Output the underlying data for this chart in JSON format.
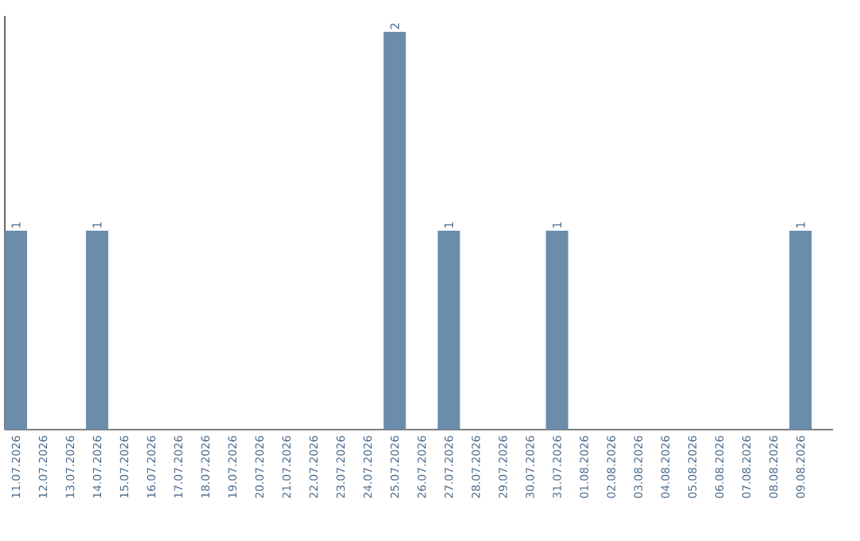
{
  "chart_data": {
    "type": "bar",
    "categories": [
      "11.07.2026",
      "12.07.2026",
      "13.07.2026",
      "14.07.2026",
      "15.07.2026",
      "16.07.2026",
      "17.07.2026",
      "18.07.2026",
      "19.07.2026",
      "20.07.2026",
      "21.07.2026",
      "22.07.2026",
      "23.07.2026",
      "24.07.2026",
      "25.07.2026",
      "26.07.2026",
      "27.07.2026",
      "28.07.2026",
      "29.07.2026",
      "30.07.2026",
      "31.07.2026",
      "01.08.2026",
      "02.08.2026",
      "03.08.2026",
      "04.08.2026",
      "05.08.2026",
      "06.08.2026",
      "07.08.2026",
      "08.08.2026",
      "09.08.2026"
    ],
    "values": [
      1,
      0,
      0,
      1,
      0,
      0,
      0,
      0,
      0,
      0,
      0,
      0,
      0,
      0,
      2,
      0,
      1,
      0,
      0,
      0,
      1,
      0,
      0,
      0,
      0,
      0,
      0,
      0,
      0,
      1
    ],
    "value_labels": [
      "1",
      null,
      null,
      "1",
      null,
      null,
      null,
      null,
      null,
      null,
      null,
      null,
      null,
      null,
      "2",
      null,
      "1",
      null,
      null,
      null,
      "1",
      null,
      null,
      null,
      null,
      null,
      null,
      null,
      null,
      "1"
    ],
    "color": "#6b8cab",
    "ylim": [
      0,
      2.08
    ],
    "tick_labels": "x",
    "grid": false
  }
}
